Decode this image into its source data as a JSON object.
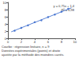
{
  "chart_data": {
    "type": "scatter",
    "annotations": [
      "y = 0,75x + 1,4",
      "R² = 0,98"
    ],
    "caption": [
      "Courbe : régression linéaire, n = 9",
      "Données expérimentales (points) et droite",
      "ajustée par la méthode des moindres carrés."
    ],
    "x": [
      1,
      2,
      3,
      4,
      5,
      6,
      7,
      8,
      9
    ],
    "series": [
      {
        "type": "scatter",
        "color": "#3366cc",
        "marker": "circle",
        "x": [
          1,
          2,
          3,
          4,
          5,
          6,
          7,
          8,
          9
        ],
        "values": [
          2.1,
          2.9,
          3.6,
          4.5,
          5.0,
          5.9,
          6.6,
          7.4,
          8.2
        ]
      },
      {
        "type": "line",
        "color": "#3366cc",
        "line_style": "solid",
        "x": [
          0.5,
          9.5
        ],
        "values": [
          1.8,
          8.5
        ]
      }
    ],
    "xlim": [
      0,
      10
    ],
    "xticks": [
      0,
      2,
      4,
      6,
      8,
      10
    ],
    "ylim": [
      0,
      10
    ],
    "yticks": [
      0,
      2,
      4,
      6,
      8,
      10
    ],
    "grid": false
  }
}
